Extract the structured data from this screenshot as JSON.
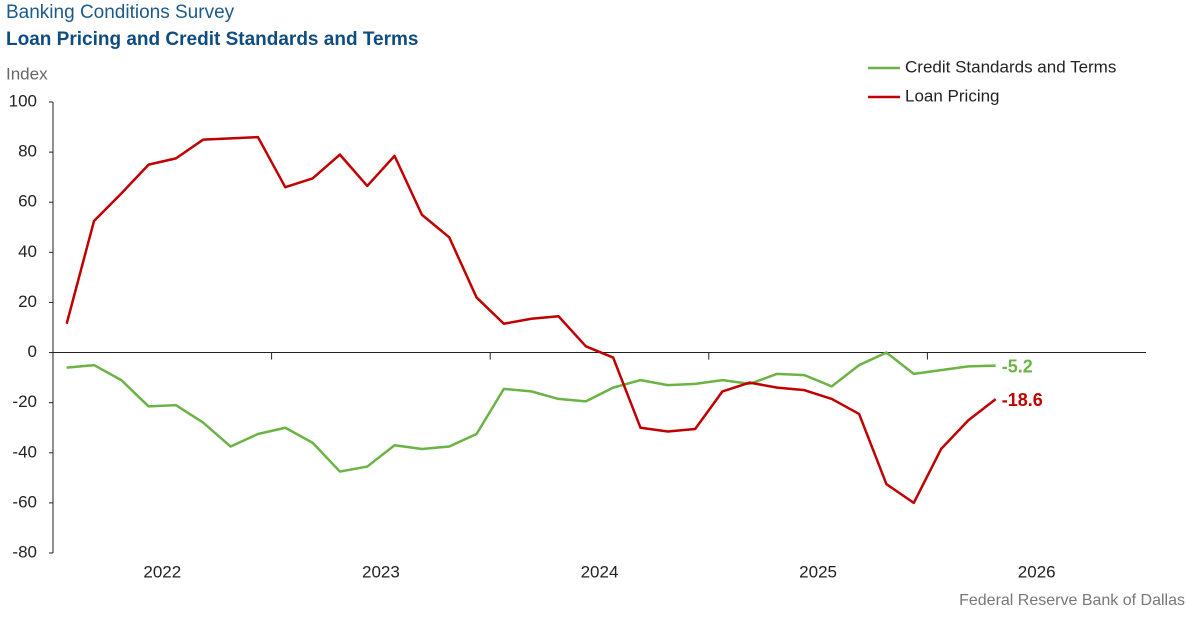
{
  "chart_data": {
    "type": "line",
    "title": "Banking Conditions Survey",
    "subtitle": "Loan Pricing and Credit Standards and Terms",
    "y_label": "Index",
    "source": "Federal Reserve Bank of Dallas",
    "x": [
      2022.0625,
      2022.1875,
      2022.3125,
      2022.4375,
      2022.5625,
      2022.6875,
      2022.8125,
      2022.9375,
      2023.0625,
      2023.1875,
      2023.3125,
      2023.4375,
      2023.5625,
      2023.6875,
      2023.8125,
      2023.9375,
      2024.0625,
      2024.1875,
      2024.3125,
      2024.4375,
      2024.5625,
      2024.6875,
      2024.8125,
      2024.9375,
      2025.0625,
      2025.1875,
      2025.3125,
      2025.4375,
      2025.5625,
      2025.6875,
      2025.8125,
      2025.9375,
      2026.0625,
      2026.1875,
      2026.3125
    ],
    "series": [
      {
        "name": "Credit Standards and Terms",
        "color": "#6ab344",
        "values": [
          -6,
          -5,
          -11,
          -21.5,
          -21,
          -28,
          -37.5,
          -32.5,
          -30,
          -36,
          -47.5,
          -45.5,
          -37,
          -38.5,
          -37.5,
          -32.5,
          -14.5,
          -15.5,
          -18.5,
          -19.5,
          -14,
          -11,
          -13,
          -12.5,
          -11,
          -12.5,
          -8.5,
          -9,
          -13.5,
          -5,
          0,
          -8.5,
          -7,
          -5.5,
          -5.2
        ],
        "end_label": "-5.2"
      },
      {
        "name": "Loan Pricing",
        "color": "#c00000",
        "values": [
          11.5,
          52.5,
          63.5,
          75,
          77.5,
          85,
          85.5,
          86,
          66,
          69.5,
          79,
          66.5,
          78.5,
          55,
          46,
          22,
          11.5,
          13.5,
          14.5,
          2.5,
          -2,
          -30,
          -31.5,
          -30.5,
          -15.5,
          -12,
          -14,
          -15,
          -18.5,
          -24.5,
          -52.5,
          -60,
          -38.5,
          -27,
          -18.6
        ],
        "end_label": "-18.6"
      }
    ],
    "xlim": [
      2022,
      2027
    ],
    "xticks": [
      2023,
      2024,
      2025,
      2026
    ],
    "year_labels": [
      "2022",
      "2023",
      "2024",
      "2025",
      "2026"
    ],
    "ylim": [
      -80,
      100
    ],
    "yticks": [
      -80,
      -60,
      -40,
      -20,
      0,
      20,
      40,
      60,
      80,
      100
    ],
    "grid": false,
    "legend": "top-right"
  }
}
